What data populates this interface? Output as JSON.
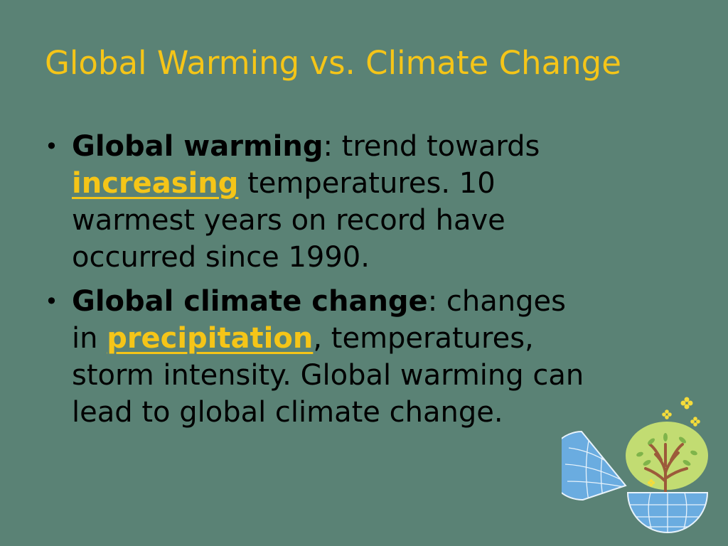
{
  "slide": {
    "title": "Global Warming vs. Climate Change",
    "bullet_symbol": "•",
    "bullets": [
      {
        "term": "Global warming",
        "lines": {
          "l1": ": trend towards",
          "l2_highlight": "increasing",
          "l2_rest": " temperatures.  10",
          "l3": "warmest years on record have",
          "l4": "occurred since 1990."
        }
      },
      {
        "term": "Global climate change",
        "lines": {
          "l1": ": changes",
          "l2_pre": "in ",
          "l2_highlight": "precipitation",
          "l2_rest": ", temperatures,",
          "l3": "storm intensity.  Global warming can",
          "l4": "lead to global climate change."
        }
      }
    ]
  },
  "colors": {
    "background": "#5a8275",
    "title": "#f5c518",
    "highlight": "#f5c518",
    "text": "#000000",
    "globe": "#6aace0",
    "tree_canopy": "#c2dc72",
    "trunk": "#9c5a3a"
  },
  "icons": {
    "illustration": "globe-tree-icon"
  }
}
